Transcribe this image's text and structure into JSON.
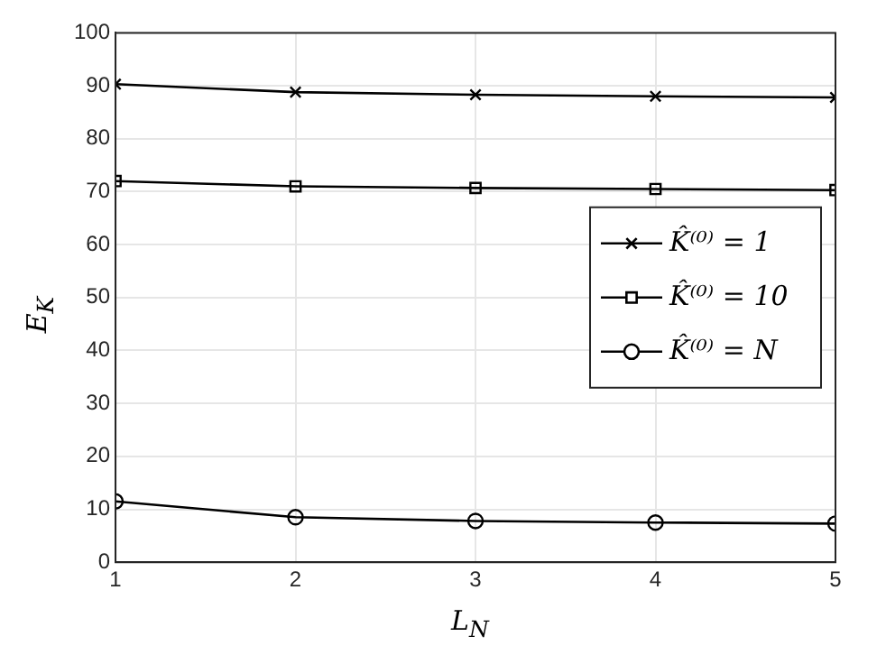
{
  "chart_data": {
    "type": "line",
    "xlabel": "L$_{N}$",
    "ylabel": "E$_{K}$",
    "x": [
      1,
      2,
      3,
      4,
      5
    ],
    "series": [
      {
        "name": "K̂⁽⁰⁾ = 1",
        "color": "#000000",
        "marker": "cross",
        "values": [
          90.3,
          88.8,
          88.3,
          88.0,
          87.8
        ]
      },
      {
        "name": "K̂⁽⁰⁾ = 10",
        "color": "#000000",
        "marker": "square",
        "values": [
          72.0,
          71.0,
          70.7,
          70.5,
          70.3
        ]
      },
      {
        "name": "K̂⁽⁰⁾ = N",
        "color": "#000000",
        "marker": "circle",
        "values": [
          11.5,
          8.5,
          7.8,
          7.5,
          7.3
        ]
      }
    ],
    "xlim": [
      1,
      5
    ],
    "xticks": [
      1,
      2,
      3,
      4,
      5
    ],
    "ylim": [
      0,
      100
    ],
    "yticks": [
      0,
      10,
      20,
      30,
      40,
      50,
      60,
      70,
      80,
      90,
      100
    ],
    "grid": true,
    "legend": "right",
    "line_style": "solid"
  }
}
